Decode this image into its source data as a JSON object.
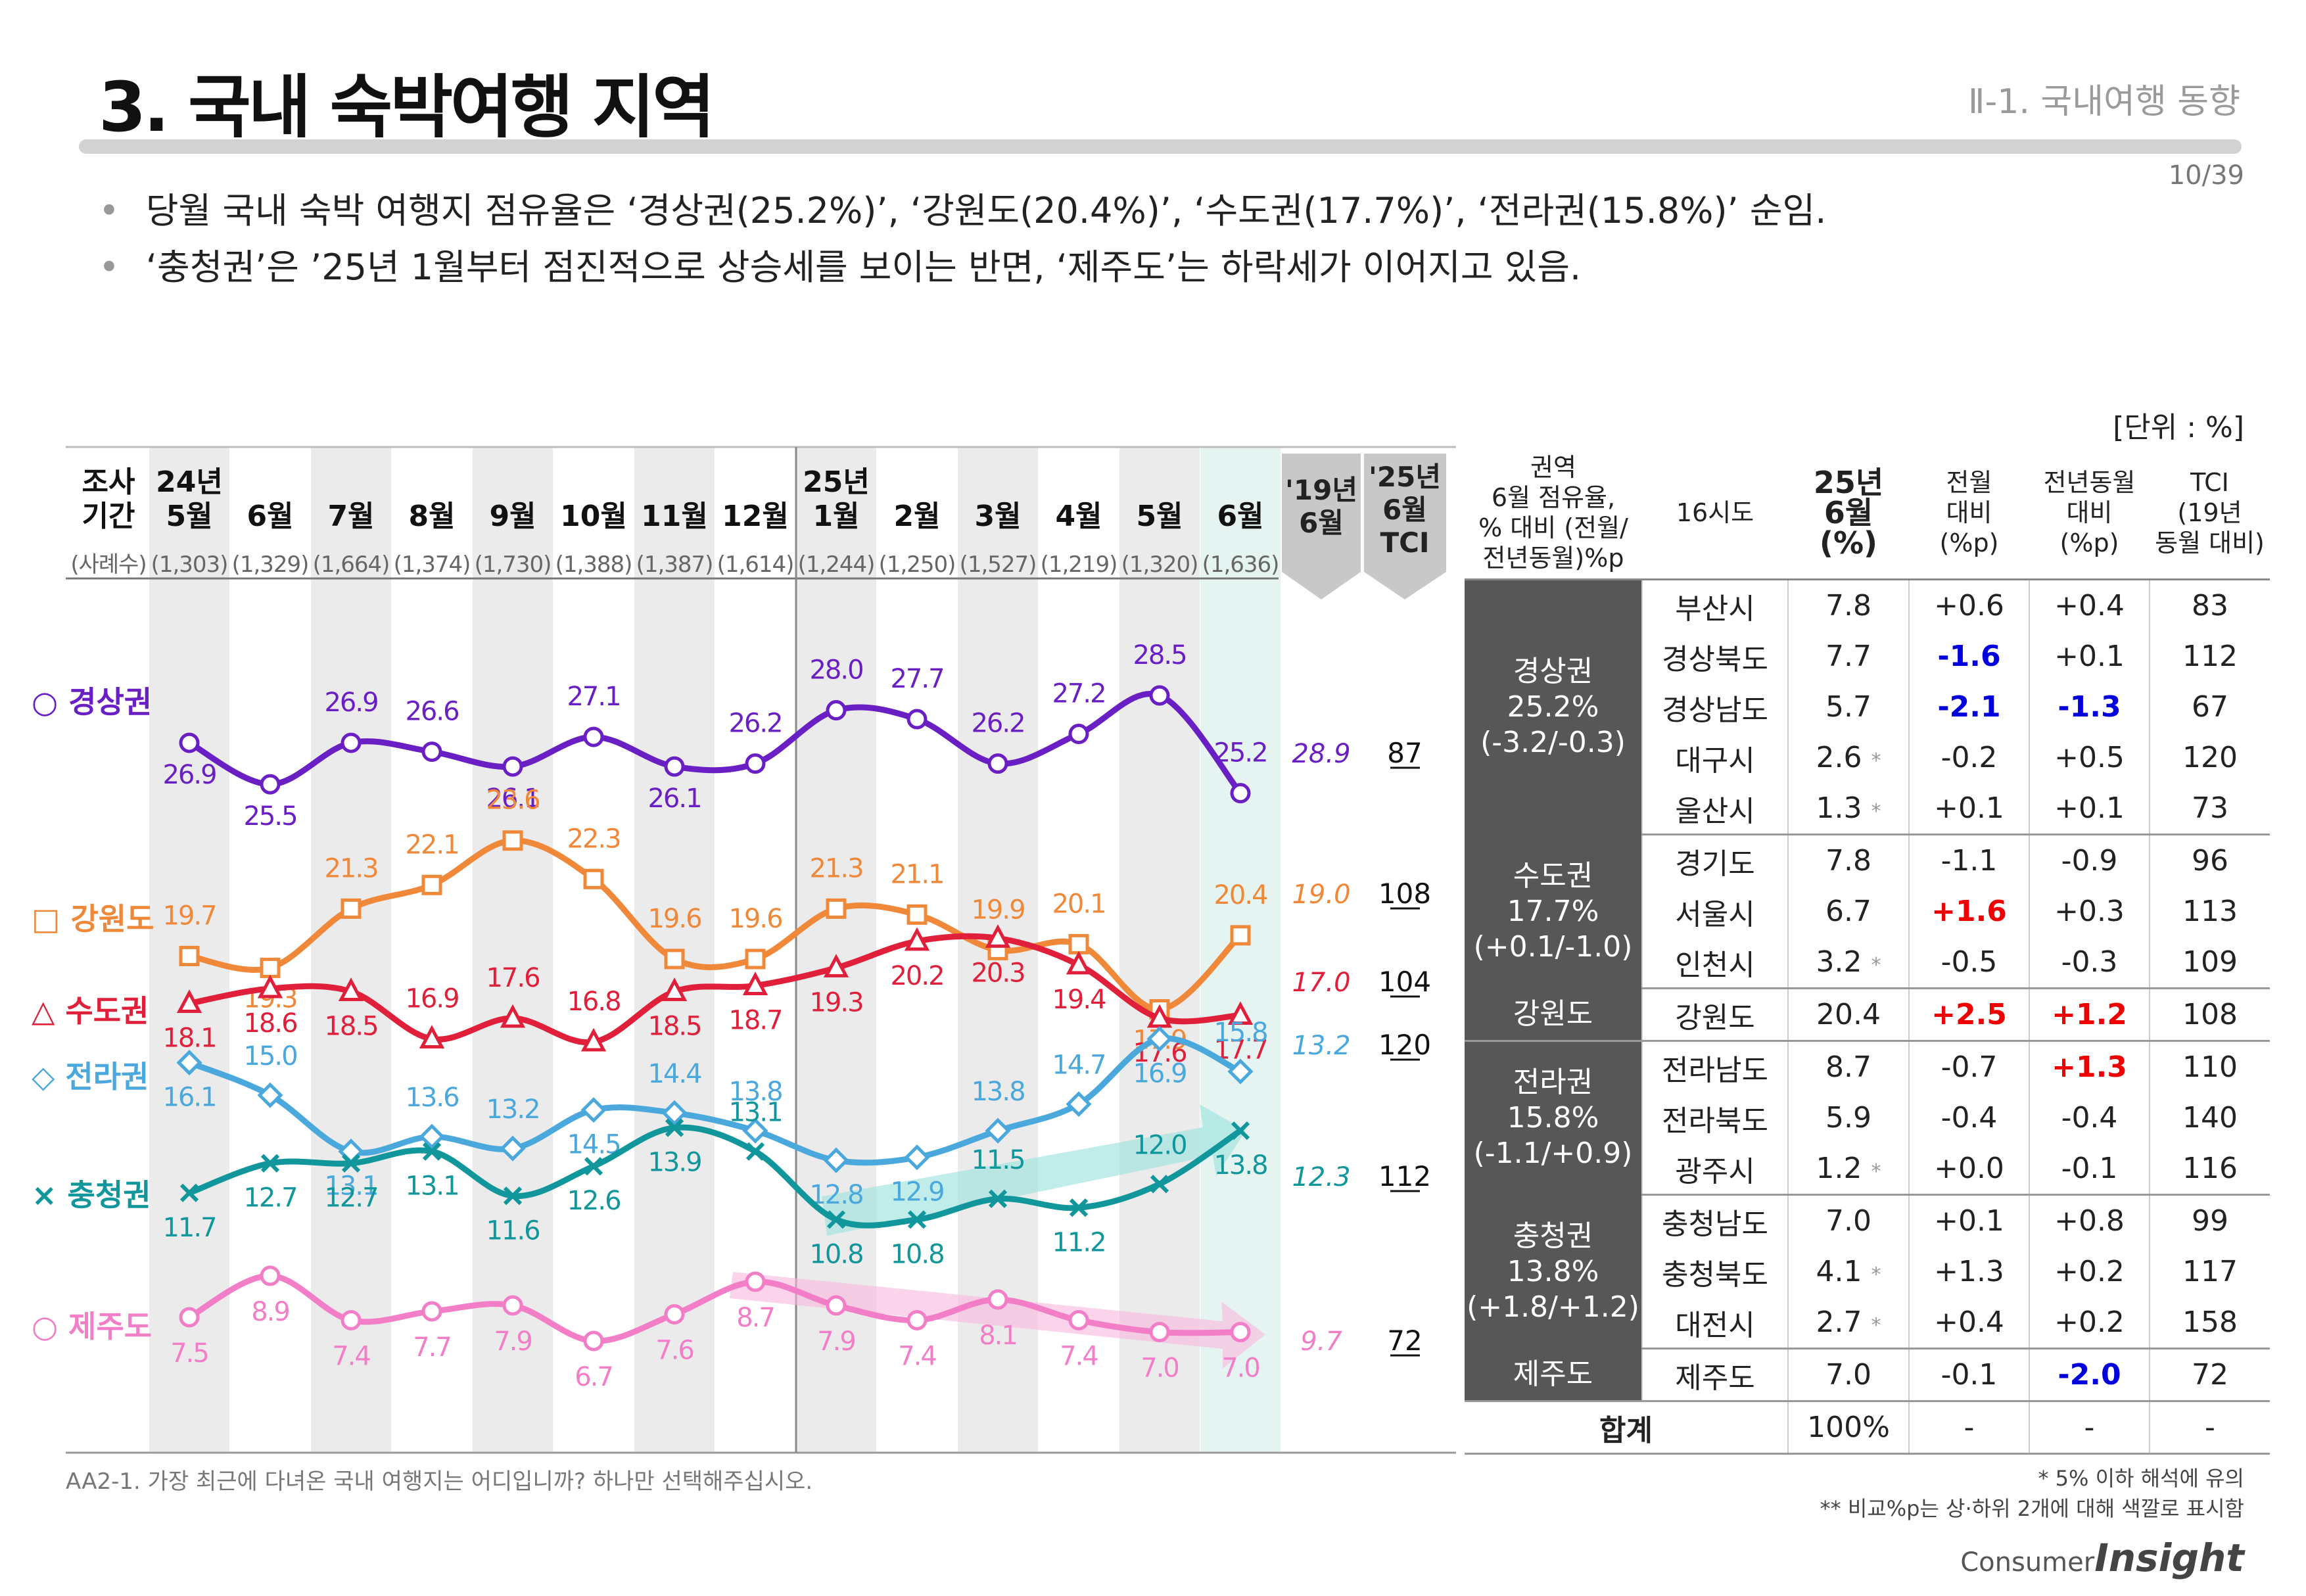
{
  "header": {
    "title": "3. 국내 숙박여행 지역",
    "section": "Ⅱ-1. 국내여행 동향",
    "page": "10/39"
  },
  "bullets": [
    "당월 국내 숙박 여행지 점유율은 ‘경상권(25.2%)’, ‘강원도(20.4%)’, ‘수도권(17.7%)’, ‘전라권(15.8%)’ 순임.",
    "‘충청권’은 ’25년 1월부터 점진적으로 상승세를 보이는 반면, ‘제주도’는 하락세가 이어지고 있음."
  ],
  "unit": "[단위 : %]",
  "chart_data": {
    "type": "line",
    "period_label": "조사\n기간",
    "sample_label": "(사례수)",
    "categories": [
      {
        "line1": "24년",
        "line2": "5월"
      },
      {
        "line1": "",
        "line2": "6월"
      },
      {
        "line1": "",
        "line2": "7월"
      },
      {
        "line1": "",
        "line2": "8월"
      },
      {
        "line1": "",
        "line2": "9월"
      },
      {
        "line1": "",
        "line2": "10월"
      },
      {
        "line1": "",
        "line2": "11월"
      },
      {
        "line1": "",
        "line2": "12월"
      },
      {
        "line1": "25년",
        "line2": "1월"
      },
      {
        "line1": "",
        "line2": "2월"
      },
      {
        "line1": "",
        "line2": "3월"
      },
      {
        "line1": "",
        "line2": "4월"
      },
      {
        "line1": "",
        "line2": "5월"
      },
      {
        "line1": "",
        "line2": "6월"
      }
    ],
    "sample_sizes": [
      "(1,303)",
      "(1,329)",
      "(1,664)",
      "(1,374)",
      "(1,730)",
      "(1,388)",
      "(1,387)",
      "(1,614)",
      "(1,244)",
      "(1,250)",
      "(1,527)",
      "(1,219)",
      "(1,320)",
      "(1,636)"
    ],
    "ref_col1": "'19년\n6월",
    "ref_col2": "'25년\n6월\nTCI",
    "series": [
      {
        "name": "경상권",
        "marker": "○",
        "color": "#6a1fc4",
        "values": [
          26.9,
          25.5,
          26.9,
          26.6,
          26.1,
          27.1,
          26.1,
          26.2,
          28.0,
          27.7,
          26.2,
          27.2,
          28.5,
          25.2
        ],
        "ref2019": "28.9",
        "tci": "87"
      },
      {
        "name": "강원도",
        "marker": "□",
        "color": "#f0883a",
        "values": [
          19.7,
          19.3,
          21.3,
          22.1,
          23.6,
          22.3,
          19.6,
          19.6,
          21.3,
          21.1,
          19.9,
          20.1,
          17.9,
          20.4
        ],
        "ref2019": "19.0",
        "tci": "108"
      },
      {
        "name": "수도권",
        "marker": "△",
        "color": "#e0203a",
        "values": [
          18.1,
          18.6,
          18.5,
          16.9,
          17.6,
          16.8,
          18.5,
          18.7,
          19.3,
          20.2,
          20.3,
          19.4,
          17.6,
          17.7
        ],
        "ref2019": "17.0",
        "tci": "104"
      },
      {
        "name": "전라권",
        "marker": "◇",
        "color": "#4aa8dc",
        "values": [
          16.1,
          15.0,
          13.1,
          13.6,
          13.2,
          14.5,
          14.4,
          13.8,
          12.8,
          12.9,
          13.8,
          14.7,
          16.9,
          15.8
        ],
        "ref2019": "13.2",
        "tci": "120"
      },
      {
        "name": "충청권",
        "marker": "×",
        "color": "#11979b",
        "values": [
          11.7,
          12.7,
          12.7,
          13.1,
          11.6,
          12.6,
          13.9,
          13.1,
          10.8,
          10.8,
          11.5,
          11.2,
          12.0,
          13.8
        ],
        "ref2019": "12.3",
        "tci": "112"
      },
      {
        "name": "제주도",
        "marker": "○",
        "color": "#f27ec7",
        "values": [
          7.5,
          8.9,
          7.4,
          7.7,
          7.9,
          6.7,
          7.6,
          8.7,
          7.9,
          7.4,
          8.1,
          7.4,
          7.0,
          7.0
        ],
        "ref2019": "9.7",
        "tci": "72"
      }
    ]
  },
  "table": {
    "headers": {
      "region": "권역\n6월 점유율,\n% 대비 (전월/\n전년동월)%p",
      "city": "16시도",
      "share": "25년\n6월\n(%)",
      "mom": "전월\n대비\n(%p)",
      "yoy": "전년동월\n대비\n(%p)",
      "tci": "TCI\n(19년\n동월 대비)"
    },
    "groups": [
      {
        "region": "경상권\n25.2%\n(-3.2/-0.3)",
        "rows": [
          {
            "city": "부산시",
            "share": "7.8",
            "ast": "",
            "mom": "+0.6",
            "mom_c": "",
            "yoy": "+0.4",
            "yoy_c": "",
            "tci": "83"
          },
          {
            "city": "경상북도",
            "share": "7.7",
            "ast": "",
            "mom": "-1.6",
            "mom_c": "blue",
            "yoy": "+0.1",
            "yoy_c": "",
            "tci": "112"
          },
          {
            "city": "경상남도",
            "share": "5.7",
            "ast": "",
            "mom": "-2.1",
            "mom_c": "blue",
            "yoy": "-1.3",
            "yoy_c": "blue",
            "tci": "67"
          },
          {
            "city": "대구시",
            "share": "2.6",
            "ast": "*",
            "mom": "-0.2",
            "mom_c": "",
            "yoy": "+0.5",
            "yoy_c": "",
            "tci": "120"
          },
          {
            "city": "울산시",
            "share": "1.3",
            "ast": "*",
            "mom": "+0.1",
            "mom_c": "",
            "yoy": "+0.1",
            "yoy_c": "",
            "tci": "73"
          }
        ]
      },
      {
        "region": "수도권\n17.7%\n(+0.1/-1.0)",
        "rows": [
          {
            "city": "경기도",
            "share": "7.8",
            "ast": "",
            "mom": "-1.1",
            "mom_c": "",
            "yoy": "-0.9",
            "yoy_c": "",
            "tci": "96"
          },
          {
            "city": "서울시",
            "share": "6.7",
            "ast": "",
            "mom": "+1.6",
            "mom_c": "red",
            "yoy": "+0.3",
            "yoy_c": "",
            "tci": "113"
          },
          {
            "city": "인천시",
            "share": "3.2",
            "ast": "*",
            "mom": "-0.5",
            "mom_c": "",
            "yoy": "-0.3",
            "yoy_c": "",
            "tci": "109"
          }
        ]
      },
      {
        "region": "강원도",
        "rows": [
          {
            "city": "강원도",
            "share": "20.4",
            "ast": "",
            "mom": "+2.5",
            "mom_c": "red",
            "yoy": "+1.2",
            "yoy_c": "red",
            "tci": "108"
          }
        ]
      },
      {
        "region": "전라권\n15.8%\n(-1.1/+0.9)",
        "rows": [
          {
            "city": "전라남도",
            "share": "8.7",
            "ast": "",
            "mom": "-0.7",
            "mom_c": "",
            "yoy": "+1.3",
            "yoy_c": "red",
            "tci": "110"
          },
          {
            "city": "전라북도",
            "share": "5.9",
            "ast": "",
            "mom": "-0.4",
            "mom_c": "",
            "yoy": "-0.4",
            "yoy_c": "",
            "tci": "140"
          },
          {
            "city": "광주시",
            "share": "1.2",
            "ast": "*",
            "mom": "+0.0",
            "mom_c": "",
            "yoy": "-0.1",
            "yoy_c": "",
            "tci": "116"
          }
        ]
      },
      {
        "region": "충청권\n13.8%\n(+1.8/+1.2)",
        "rows": [
          {
            "city": "충청남도",
            "share": "7.0",
            "ast": "",
            "mom": "+0.1",
            "mom_c": "",
            "yoy": "+0.8",
            "yoy_c": "",
            "tci": "99"
          },
          {
            "city": "충청북도",
            "share": "4.1",
            "ast": "*",
            "mom": "+1.3",
            "mom_c": "",
            "yoy": "+0.2",
            "yoy_c": "",
            "tci": "117"
          },
          {
            "city": "대전시",
            "share": "2.7",
            "ast": "*",
            "mom": "+0.4",
            "mom_c": "",
            "yoy": "+0.2",
            "yoy_c": "",
            "tci": "158"
          }
        ]
      },
      {
        "region": "제주도",
        "rows": [
          {
            "city": "제주도",
            "share": "7.0",
            "ast": "",
            "mom": "-0.1",
            "mom_c": "",
            "yoy": "-2.0",
            "yoy_c": "blue",
            "tci": "72"
          }
        ]
      }
    ],
    "total": {
      "label": "합계",
      "share": "100%",
      "mom": "-",
      "yoy": "-",
      "tci": "-"
    }
  },
  "footnotes": {
    "question": "AA2-1. 가장 최근에 다녀온 국내 여행지는 어디입니까? 하나만 선택해주십시오.",
    "note1": "* 5% 이하 해석에 유의",
    "note2": "** 비교%p는 상·하위 2개에 대해 색깔로 표시함",
    "logo_prefix": "Consumer",
    "logo_main": "Insight"
  }
}
